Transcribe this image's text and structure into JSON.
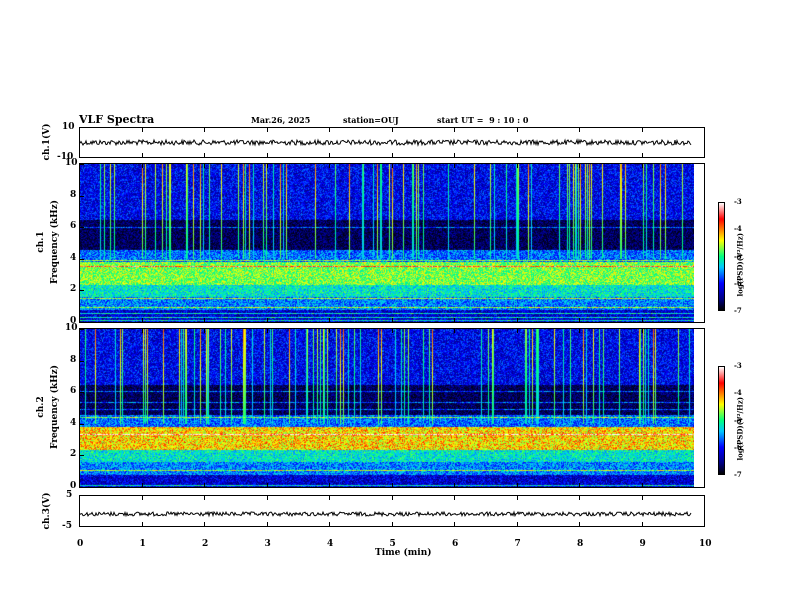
{
  "header": {
    "title": "VLF Spectra",
    "date": "Mar.26, 2025",
    "station": "station=OUJ",
    "start": "start UT =  9 : 10 : 0"
  },
  "colors": {
    "spec_low": "#000080",
    "spec_mid": "#00ff80",
    "spec_high": "#ff0000"
  },
  "chart_data": [
    {
      "type": "line",
      "panel": "ch1-waveform",
      "ylabel": "ch.1(V)",
      "ylim": [
        -10,
        10
      ],
      "yticks": [
        "10",
        "-10"
      ],
      "xlim": [
        0,
        10
      ],
      "approx_level": 0
    },
    {
      "type": "heatmap",
      "panel": "ch1-spectrogram",
      "ylabel": "ch.1\nFrequency (kHz)",
      "ylabel_top": "ch.1",
      "ylabel_bottom": "Frequency (kHz)",
      "ylim": [
        0,
        10
      ],
      "yticks": [
        "0",
        "2",
        "4",
        "6",
        "8",
        "10"
      ],
      "xlim": [
        0,
        10
      ],
      "colorbar": {
        "label": "log(PSD)(V²/Hz)",
        "ticks": [
          "-3",
          "-4",
          "-5",
          "-6",
          "-7"
        ]
      }
    },
    {
      "type": "heatmap",
      "panel": "ch2-spectrogram",
      "ylabel_top": "ch.2",
      "ylabel_bottom": "Frequency (kHz)",
      "ylim": [
        0,
        10
      ],
      "yticks": [
        "0",
        "2",
        "4",
        "6",
        "8",
        "10"
      ],
      "xlim": [
        0,
        10
      ],
      "colorbar": {
        "label": "log(PSD)(V²/Hz)",
        "ticks": [
          "-3",
          "-4",
          "-5",
          "-6",
          "-7"
        ]
      }
    },
    {
      "type": "line",
      "panel": "ch3-waveform",
      "ylabel": "ch.3(V)",
      "ylim": [
        -5,
        5
      ],
      "yticks": [
        "5",
        "-5"
      ],
      "xlim": [
        0,
        10
      ],
      "approx_level": -1
    }
  ],
  "xaxis": {
    "label": "Time (min)",
    "ticks": [
      "0",
      "1",
      "2",
      "3",
      "4",
      "5",
      "6",
      "7",
      "8",
      "9",
      "10"
    ]
  }
}
